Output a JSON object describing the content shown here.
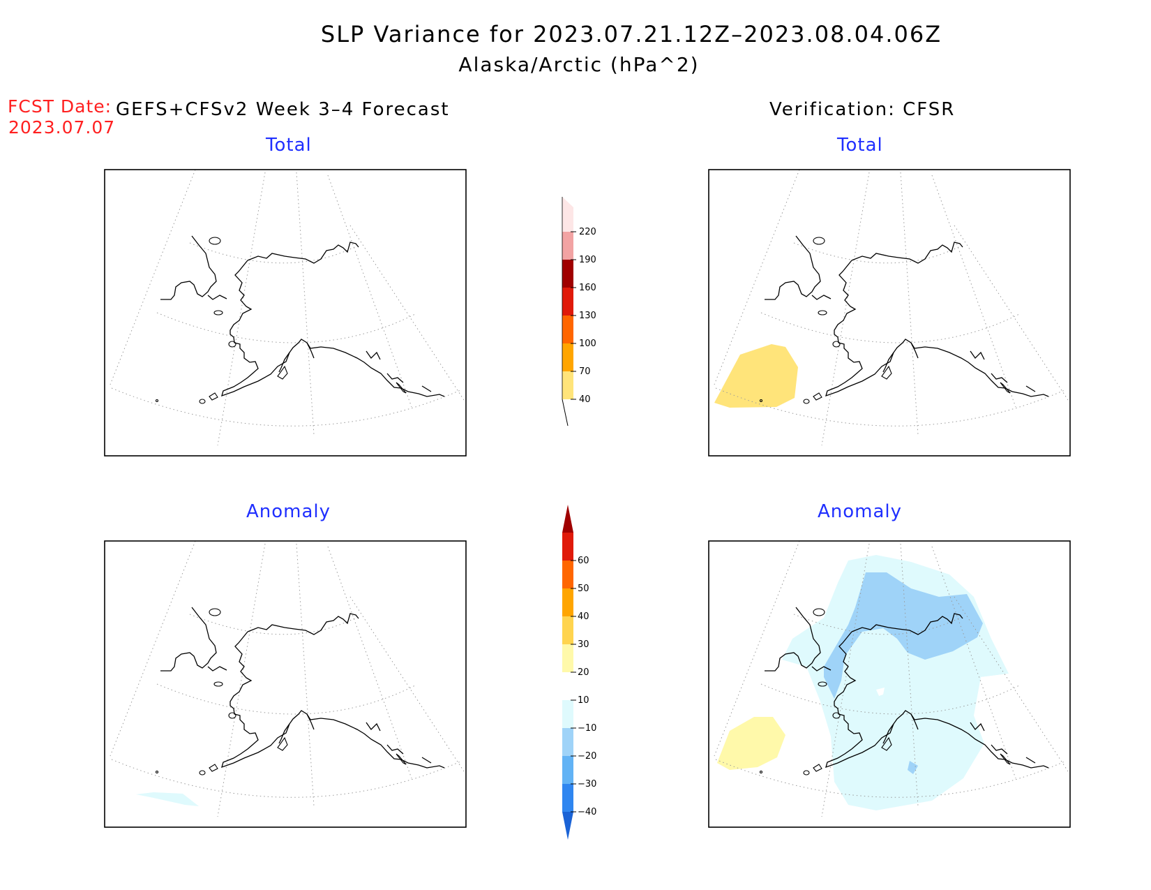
{
  "title": {
    "line1": "SLP Variance for 2023.07.21.12Z–2023.08.04.06Z",
    "line2": "Alaska/Arctic (hPa^2)"
  },
  "forecast": {
    "date_label": "FCST Date:",
    "date_value": "2023.07.07",
    "header": "GEFS+CFSv2 Week 3–4 Forecast"
  },
  "verification": {
    "header": "Verification: CFSR"
  },
  "panels": {
    "top_left": "Total",
    "top_right": "Total",
    "bottom_left": "Anomaly",
    "bottom_right": "Anomaly"
  },
  "colorbars": {
    "total": {
      "ticks": [
        "40",
        "70",
        "100",
        "130",
        "160",
        "190",
        "220"
      ],
      "colors": [
        "#ffe47a",
        "#ffa500",
        "#ff6600",
        "#e01a0a",
        "#a00000",
        "#f2a3a3",
        "#fde6e6"
      ]
    },
    "anomaly": {
      "ticks": [
        "-40",
        "-30",
        "-20",
        "-10",
        "10",
        "20",
        "30",
        "40",
        "50",
        "60"
      ],
      "colors": [
        "#1a63d6",
        "#2f86f0",
        "#62b3f5",
        "#9fd3f8",
        "#dffafd",
        "#ffffff",
        "#fff9aa",
        "#ffd44f",
        "#ffa500",
        "#ff6600",
        "#e01a0a",
        "#a00000"
      ]
    }
  },
  "fill_colors": {
    "total_yellow": "#ffe47a",
    "anom_yellow": "#fff9aa",
    "anom_lightcyan": "#dffafd",
    "anom_blue": "#9fd3f8"
  }
}
